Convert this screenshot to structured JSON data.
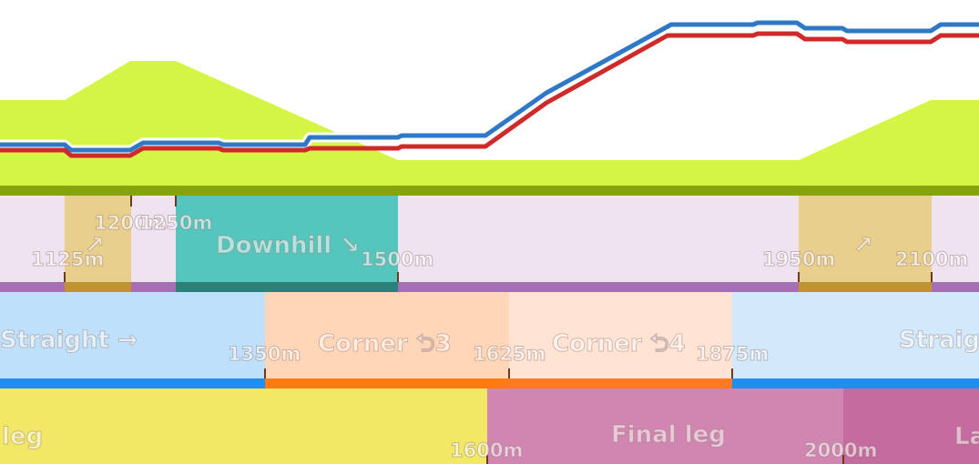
{
  "elevation": {
    "terrain_color": "#d4f545",
    "terrain_base_color": "#86a30c",
    "series": [
      {
        "color": "#2f78c8"
      },
      {
        "color": "#cf2a2a"
      }
    ]
  },
  "gradient_track": {
    "background": "#efe3f1",
    "base_color": "#a56fb6",
    "segments": [
      {
        "start": 1125,
        "end": 1200,
        "kind": "climb",
        "label": "↗",
        "color": "#e8cf8c",
        "base": "#bf9430"
      },
      {
        "start": 1250,
        "end": 1500,
        "kind": "descent",
        "label": "Downhill ↘",
        "color": "#55c6bd",
        "base": "#2b8177"
      },
      {
        "start": 1950,
        "end": 2100,
        "kind": "climb",
        "label": "↗",
        "color": "#e8cf8c",
        "base": "#bf9430"
      }
    ],
    "markers": [
      "1125m",
      "1200m",
      "1250m",
      "1500m",
      "1950m",
      "2100m"
    ]
  },
  "corner_track": {
    "segments": [
      {
        "label": "Straight →",
        "color": "#bfe0fb",
        "base": "#1e8ff0"
      },
      {
        "label": "Corner ⮌3",
        "color": "#ffd6b8",
        "base": "#ff7a10"
      },
      {
        "label": "Corner ⮌4",
        "color": "#ffe3d3",
        "base": "#ff7a22"
      },
      {
        "label": "Straight →",
        "color": "#d2e9fc",
        "base": "#1e8ff0"
      }
    ],
    "markers": [
      "1350m",
      "1625m",
      "1875m"
    ]
  },
  "leg_track": {
    "segments": [
      {
        "label": "Opening leg",
        "color": "#f2e866"
      },
      {
        "label": "Final leg",
        "color": "#d086b1"
      },
      {
        "label": "Last spurt",
        "color": "#c56b9f"
      }
    ],
    "markers": [
      "1600m",
      "2000m"
    ]
  }
}
